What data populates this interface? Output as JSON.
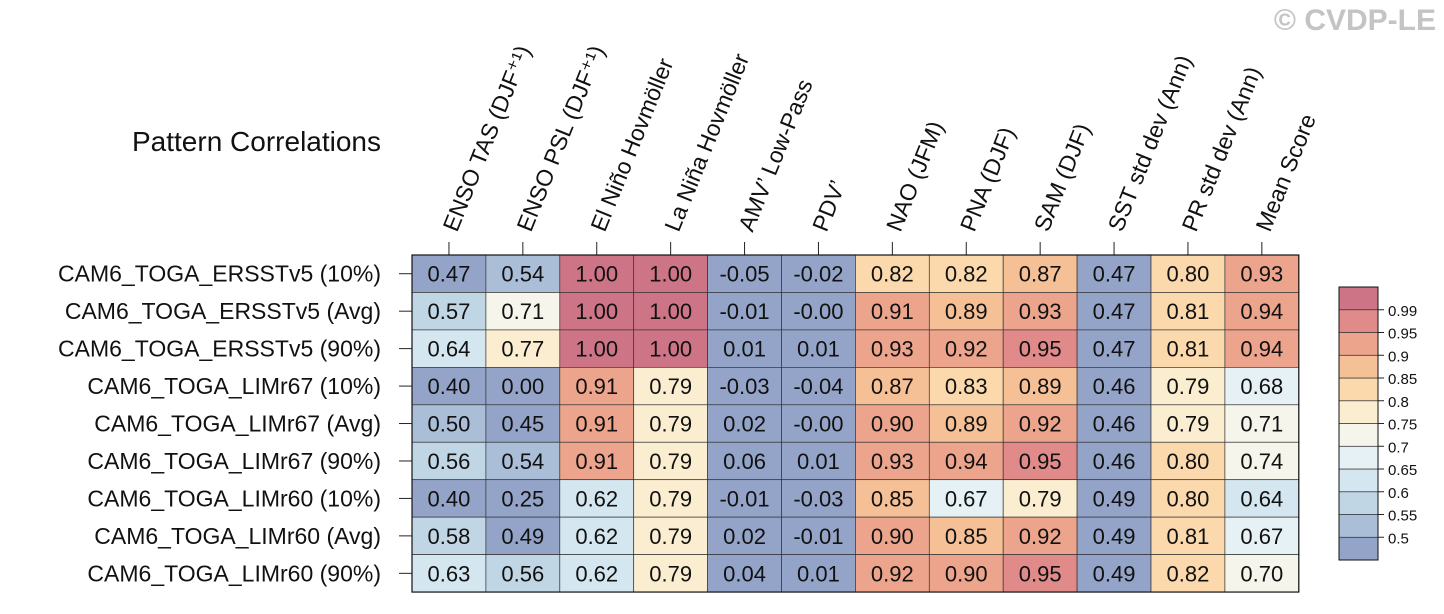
{
  "watermark": "© CVDP-LE",
  "chart_data": {
    "type": "heatmap",
    "title": "Pattern Correlations",
    "columns": [
      "ENSO TAS (DJF⁺¹)",
      "ENSO PSL (DJF⁺¹)",
      "El Niño Hovmöller",
      "La Niña Hovmöller",
      "AMV’ Low-Pass",
      "PDV’",
      "NAO (JFM)",
      "PNA (DJF)",
      "SAM (DJF)",
      "SST std dev (Ann)",
      "PR std dev (Ann)",
      "Mean Score"
    ],
    "rows": [
      "CAM6_TOGA_ERSSTv5 (10%)",
      "CAM6_TOGA_ERSSTv5 (Avg)",
      "CAM6_TOGA_ERSSTv5 (90%)",
      "CAM6_TOGA_LIMr67 (10%)",
      "CAM6_TOGA_LIMr67 (Avg)",
      "CAM6_TOGA_LIMr67 (90%)",
      "CAM6_TOGA_LIMr60 (10%)",
      "CAM6_TOGA_LIMr60 (Avg)",
      "CAM6_TOGA_LIMr60 (90%)"
    ],
    "values": [
      [
        "0.47",
        "0.54",
        "1.00",
        "1.00",
        "-0.05",
        "-0.02",
        "0.82",
        "0.82",
        "0.87",
        "0.47",
        "0.80",
        "0.93"
      ],
      [
        "0.57",
        "0.71",
        "1.00",
        "1.00",
        "-0.01",
        "-0.00",
        "0.91",
        "0.89",
        "0.93",
        "0.47",
        "0.81",
        "0.94"
      ],
      [
        "0.64",
        "0.77",
        "1.00",
        "1.00",
        "0.01",
        "0.01",
        "0.93",
        "0.92",
        "0.95",
        "0.47",
        "0.81",
        "0.94"
      ],
      [
        "0.40",
        "0.00",
        "0.91",
        "0.79",
        "-0.03",
        "-0.04",
        "0.87",
        "0.83",
        "0.89",
        "0.46",
        "0.79",
        "0.68"
      ],
      [
        "0.50",
        "0.45",
        "0.91",
        "0.79",
        "0.02",
        "-0.00",
        "0.90",
        "0.89",
        "0.92",
        "0.46",
        "0.79",
        "0.71"
      ],
      [
        "0.56",
        "0.54",
        "0.91",
        "0.79",
        "0.06",
        "0.01",
        "0.93",
        "0.94",
        "0.95",
        "0.46",
        "0.80",
        "0.74"
      ],
      [
        "0.40",
        "0.25",
        "0.62",
        "0.79",
        "-0.01",
        "-0.03",
        "0.85",
        "0.67",
        "0.79",
        "0.49",
        "0.80",
        "0.64"
      ],
      [
        "0.58",
        "0.49",
        "0.62",
        "0.79",
        "0.02",
        "-0.01",
        "0.90",
        "0.85",
        "0.92",
        "0.49",
        "0.81",
        "0.67"
      ],
      [
        "0.63",
        "0.56",
        "0.62",
        "0.79",
        "0.04",
        "0.01",
        "0.92",
        "0.90",
        "0.95",
        "0.49",
        "0.82",
        "0.70"
      ]
    ],
    "colorbar": {
      "levels": [
        "0.5",
        "0.55",
        "0.6",
        "0.65",
        "0.7",
        "0.75",
        "0.8",
        "0.85",
        "0.9",
        "0.95",
        "0.99"
      ],
      "colors": [
        "#94a4c8",
        "#aabed8",
        "#c0d6e4",
        "#d4e6ef",
        "#e6f1f5",
        "#f5f5ec",
        "#fbeed0",
        "#fbd9ad",
        "#f6c097",
        "#eca58c",
        "#e08a8a",
        "#cd7587"
      ]
    }
  }
}
